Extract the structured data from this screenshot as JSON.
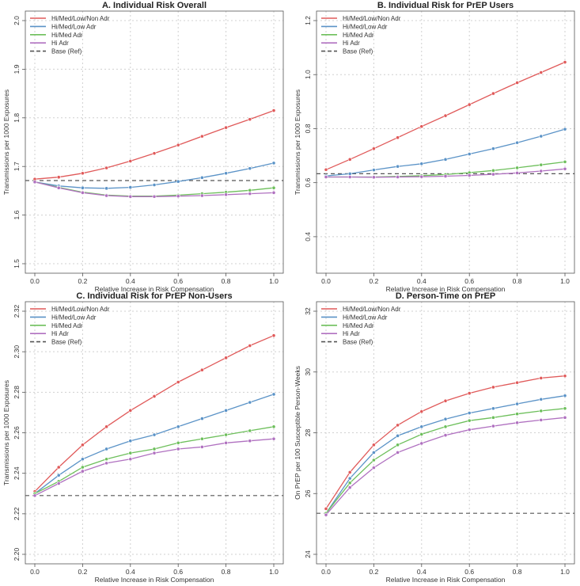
{
  "chart_data": [
    {
      "type": "line",
      "title": "A. Individual Risk Overall",
      "xlabel": "Relative Increase in Risk Compensation",
      "ylabel": "Transmissions per 1000 Exposures",
      "x": [
        0.0,
        0.1,
        0.2,
        0.3,
        0.4,
        0.5,
        0.6,
        0.7,
        0.8,
        0.9,
        1.0
      ],
      "xlim": [
        0,
        1
      ],
      "ylim": [
        1.5,
        2.0
      ],
      "xticks": [
        "0.0",
        "0.2",
        "0.4",
        "0.6",
        "0.8",
        "1.0"
      ],
      "yticks": [
        "1.5",
        "1.6",
        "1.7",
        "1.8",
        "1.9",
        "2.0"
      ],
      "reference": {
        "name": "Base (Ref)",
        "value": 1.671
      },
      "legend_position": "top-left",
      "series": [
        {
          "name": "Hi/Med/Low/Non Adr",
          "color": "#e05a5a",
          "values": [
            1.674,
            1.678,
            1.686,
            1.697,
            1.711,
            1.727,
            1.744,
            1.762,
            1.78,
            1.797,
            1.815
          ]
        },
        {
          "name": "Hi/Med/Low Adr",
          "color": "#5b93c7",
          "values": [
            1.668,
            1.66,
            1.656,
            1.655,
            1.657,
            1.662,
            1.669,
            1.677,
            1.686,
            1.696,
            1.707
          ]
        },
        {
          "name": "Hi/Med Adr",
          "color": "#6dbf5b",
          "values": [
            1.668,
            1.657,
            1.647,
            1.641,
            1.639,
            1.639,
            1.641,
            1.644,
            1.647,
            1.651,
            1.656
          ]
        },
        {
          "name": "Hi Adr",
          "color": "#b071c0",
          "values": [
            1.668,
            1.656,
            1.646,
            1.64,
            1.638,
            1.638,
            1.639,
            1.64,
            1.642,
            1.644,
            1.646
          ]
        }
      ]
    },
    {
      "type": "line",
      "title": "B. Individual Risk for PrEP Users",
      "xlabel": "Relative Increase in Risk Compensation",
      "ylabel": "Transmissions per 1000 Exposures",
      "x": [
        0.0,
        0.1,
        0.2,
        0.3,
        0.4,
        0.5,
        0.6,
        0.7,
        0.8,
        0.9,
        1.0
      ],
      "xlim": [
        0,
        1
      ],
      "ylim": [
        0.3,
        1.2
      ],
      "xticks": [
        "0.0",
        "0.2",
        "0.4",
        "0.6",
        "0.8",
        "1.0"
      ],
      "yticks": [
        "0.4",
        "0.6",
        "0.8",
        "1.0",
        "1.2"
      ],
      "reference": {
        "name": "Base (Ref)",
        "value": 0.633
      },
      "legend_position": "top-left",
      "series": [
        {
          "name": "Hi/Med/Low/Non Adr",
          "color": "#e05a5a",
          "values": [
            0.648,
            0.686,
            0.726,
            0.767,
            0.808,
            0.848,
            0.889,
            0.93,
            0.97,
            1.008,
            1.046
          ]
        },
        {
          "name": "Hi/Med/Low Adr",
          "color": "#5b93c7",
          "values": [
            0.625,
            0.633,
            0.647,
            0.66,
            0.67,
            0.686,
            0.706,
            0.726,
            0.748,
            0.772,
            0.798
          ]
        },
        {
          "name": "Hi/Med Adr",
          "color": "#6dbf5b",
          "values": [
            0.621,
            0.621,
            0.621,
            0.623,
            0.626,
            0.63,
            0.637,
            0.645,
            0.655,
            0.666,
            0.677
          ]
        },
        {
          "name": "Hi Adr",
          "color": "#b071c0",
          "values": [
            0.621,
            0.621,
            0.62,
            0.621,
            0.622,
            0.624,
            0.627,
            0.631,
            0.636,
            0.643,
            0.651
          ]
        }
      ]
    },
    {
      "type": "line",
      "title": "C. Individual Risk for PrEP Non-Users",
      "xlabel": "Relative Increase in Risk Compensation",
      "ylabel": "Transmissions per 1000 Exposures",
      "x": [
        0.0,
        0.1,
        0.2,
        0.3,
        0.4,
        0.5,
        0.6,
        0.7,
        0.8,
        0.9,
        1.0
      ],
      "xlim": [
        0,
        1
      ],
      "ylim": [
        2.2,
        2.32
      ],
      "xticks": [
        "0.0",
        "0.2",
        "0.4",
        "0.6",
        "0.8",
        "1.0"
      ],
      "yticks": [
        "2.20",
        "2.22",
        "2.24",
        "2.26",
        "2.28",
        "2.30",
        "2.32"
      ],
      "reference": {
        "name": "Base (Ref)",
        "value": 2.229
      },
      "legend_position": "top-left",
      "series": [
        {
          "name": "Hi/Med/Low/Non Adr",
          "color": "#e05a5a",
          "values": [
            2.231,
            2.243,
            2.254,
            2.263,
            2.271,
            2.278,
            2.285,
            2.291,
            2.297,
            2.303,
            2.308
          ]
        },
        {
          "name": "Hi/Med/Low Adr",
          "color": "#5b93c7",
          "values": [
            2.23,
            2.239,
            2.247,
            2.252,
            2.256,
            2.259,
            2.263,
            2.267,
            2.271,
            2.275,
            2.279
          ]
        },
        {
          "name": "Hi/Med Adr",
          "color": "#6dbf5b",
          "values": [
            2.23,
            2.236,
            2.243,
            2.247,
            2.25,
            2.252,
            2.255,
            2.257,
            2.259,
            2.261,
            2.263
          ]
        },
        {
          "name": "Hi Adr",
          "color": "#b071c0",
          "values": [
            2.229,
            2.235,
            2.241,
            2.245,
            2.247,
            2.25,
            2.252,
            2.253,
            2.255,
            2.256,
            2.257
          ]
        }
      ]
    },
    {
      "type": "line",
      "title": "D. Person-Time on PrEP",
      "xlabel": "Relative Increase in Risk Compensation",
      "ylabel": "On PrEP per 100 Susceptible Person-Weeks",
      "x": [
        0.0,
        0.1,
        0.2,
        0.3,
        0.4,
        0.5,
        0.6,
        0.7,
        0.8,
        0.9,
        1.0
      ],
      "xlim": [
        0,
        1
      ],
      "ylim": [
        24,
        32
      ],
      "xticks": [
        "0.0",
        "0.2",
        "0.4",
        "0.6",
        "0.8",
        "1.0"
      ],
      "yticks": [
        "24",
        "26",
        "28",
        "30",
        "32"
      ],
      "reference": {
        "name": "Base (Ref)",
        "value": 25.35
      },
      "legend_position": "top-left",
      "series": [
        {
          "name": "Hi/Med/Low/Non Adr",
          "color": "#e05a5a",
          "values": [
            25.5,
            26.7,
            27.6,
            28.25,
            28.7,
            29.05,
            29.3,
            29.5,
            29.65,
            29.8,
            29.87
          ]
        },
        {
          "name": "Hi/Med/Low Adr",
          "color": "#5b93c7",
          "values": [
            25.35,
            26.5,
            27.35,
            27.9,
            28.2,
            28.45,
            28.65,
            28.8,
            28.95,
            29.1,
            29.22
          ]
        },
        {
          "name": "Hi/Med Adr",
          "color": "#6dbf5b",
          "values": [
            25.35,
            26.35,
            27.1,
            27.6,
            27.95,
            28.2,
            28.4,
            28.5,
            28.62,
            28.72,
            28.8
          ]
        },
        {
          "name": "Hi Adr",
          "color": "#b071c0",
          "values": [
            25.3,
            26.2,
            26.85,
            27.35,
            27.65,
            27.92,
            28.1,
            28.22,
            28.33,
            28.42,
            28.5
          ]
        }
      ]
    }
  ]
}
